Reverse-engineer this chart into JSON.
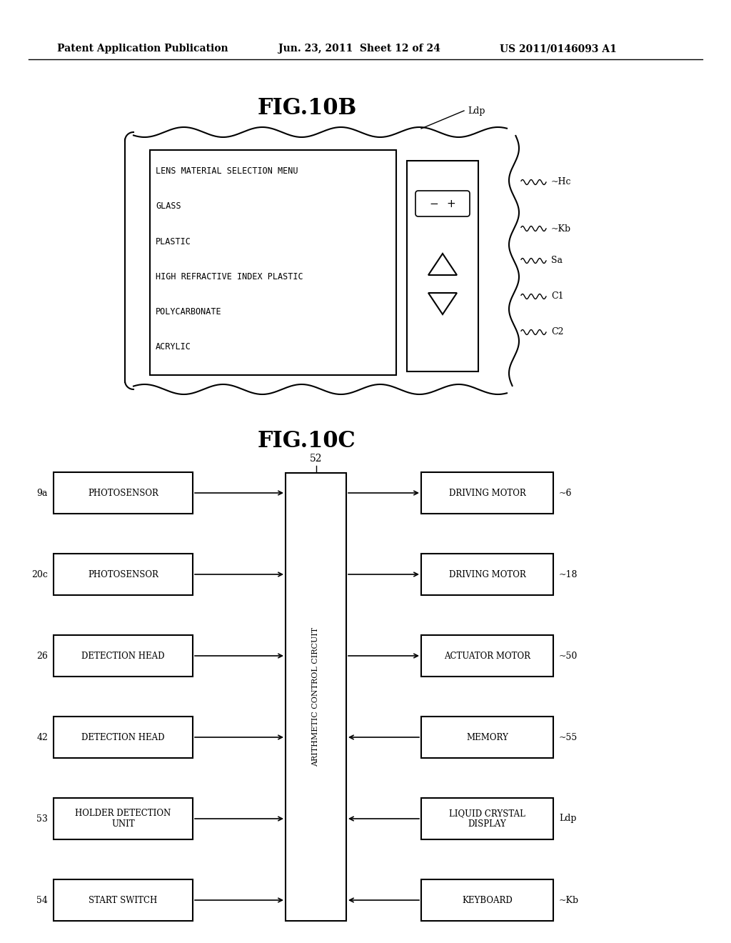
{
  "header_left": "Patent Application Publication",
  "header_mid": "Jun. 23, 2011  Sheet 12 of 24",
  "header_right": "US 2011/0146093 A1",
  "fig10b_title": "FIG.10B",
  "fig10c_title": "FIG.10C",
  "background_color": "#ffffff",
  "text_color": "#000000",
  "fig10b": {
    "ldp_label": "Ldp",
    "hc_label": "~Hc",
    "kb_label": "~Kb",
    "sa_label": "Sa",
    "c1_label": "C1",
    "c2_label": "C2",
    "screen_lines": [
      "LENS MATERIAL SELECTION MENU",
      "GLASS",
      "PLASTIC",
      "HIGH REFRACTIVE INDEX PLASTIC",
      "POLYCARBONATE",
      "ACRYLIC"
    ]
  },
  "fig10c": {
    "center_label": "52",
    "center_text": "ARITHMETIC CONTROL CIRCUIT",
    "left_boxes": [
      {
        "label": "9a",
        "text": "PHOTOSENSOR"
      },
      {
        "label": "20c",
        "text": "PHOTOSENSOR"
      },
      {
        "label": "26",
        "text": "DETECTION HEAD"
      },
      {
        "label": "42",
        "text": "DETECTION HEAD"
      },
      {
        "label": "53",
        "text": "HOLDER DETECTION\nUNIT"
      },
      {
        "label": "54",
        "text": "START SWITCH"
      }
    ],
    "right_boxes": [
      {
        "label": "~6",
        "text": "DRIVING MOTOR"
      },
      {
        "label": "~18",
        "text": "DRIVING MOTOR"
      },
      {
        "label": "~50",
        "text": "ACTUATOR MOTOR"
      },
      {
        "label": "~55",
        "text": "MEMORY"
      },
      {
        "label": "Ldp",
        "text": "LIQUID CRYSTAL\nDISPLAY"
      },
      {
        "label": "~Kb",
        "text": "KEYBOARD"
      }
    ]
  }
}
